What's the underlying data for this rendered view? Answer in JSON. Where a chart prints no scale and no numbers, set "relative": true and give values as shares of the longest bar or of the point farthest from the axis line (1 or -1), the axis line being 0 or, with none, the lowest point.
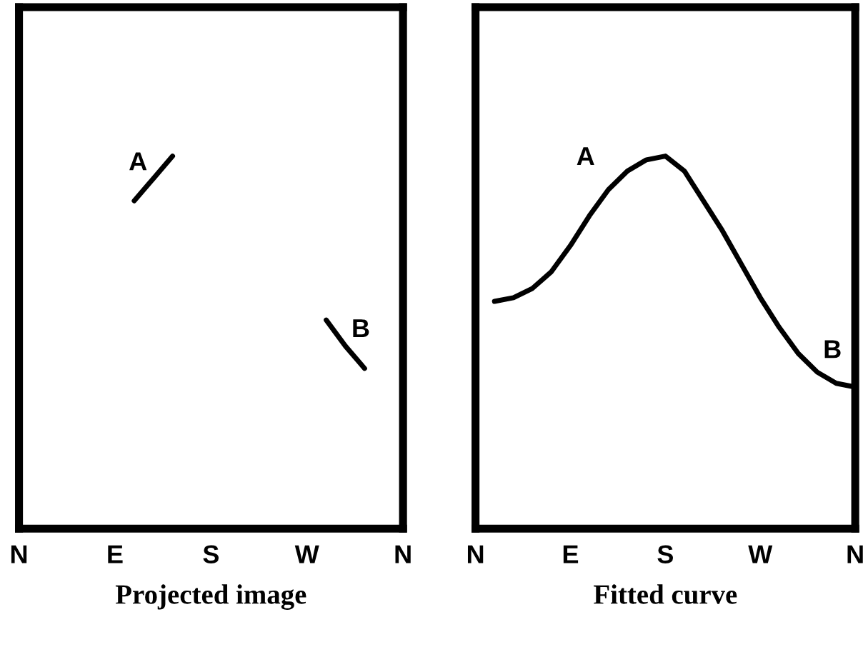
{
  "chart_data": [
    {
      "type": "line",
      "relative": true,
      "xlabel": "Projected image",
      "categories": [
        "N",
        null,
        null,
        null,
        null,
        "E",
        null,
        null,
        null,
        null,
        "S",
        null,
        null,
        null,
        null,
        "W",
        null,
        null,
        null,
        null,
        "N"
      ],
      "grid": false,
      "legend": false,
      "marker": "none",
      "line_style": "solid",
      "series": [
        {
          "color": "#000000",
          "values": [
            null,
            null,
            null,
            null,
            null,
            null,
            0.88,
            0.94,
            1.0,
            null,
            null,
            null,
            null,
            null,
            null,
            null,
            null,
            null,
            null,
            null,
            null
          ]
        },
        {
          "color": "#000000",
          "values": [
            null,
            null,
            null,
            null,
            null,
            null,
            null,
            null,
            null,
            null,
            null,
            null,
            null,
            null,
            null,
            null,
            0.56,
            0.49,
            0.43,
            null,
            null
          ]
        }
      ],
      "annotations": [
        "A",
        "B"
      ]
    },
    {
      "type": "line",
      "relative": true,
      "xlabel": "Fitted curve",
      "categories": [
        "N",
        null,
        null,
        null,
        null,
        "E",
        null,
        null,
        null,
        null,
        "S",
        null,
        null,
        null,
        null,
        "W",
        null,
        null,
        null,
        null,
        "N"
      ],
      "grid": false,
      "legend": false,
      "marker": "none",
      "line_style": "solid",
      "series": [
        {
          "color": "#000000",
          "values": [
            null,
            0.61,
            0.62,
            0.645,
            0.69,
            0.76,
            0.84,
            0.91,
            0.96,
            0.99,
            1.0,
            0.96,
            0.88,
            0.8,
            0.71,
            0.62,
            0.54,
            0.47,
            0.42,
            0.39,
            0.38
          ]
        }
      ],
      "annotations": [
        "A",
        "B"
      ]
    }
  ]
}
